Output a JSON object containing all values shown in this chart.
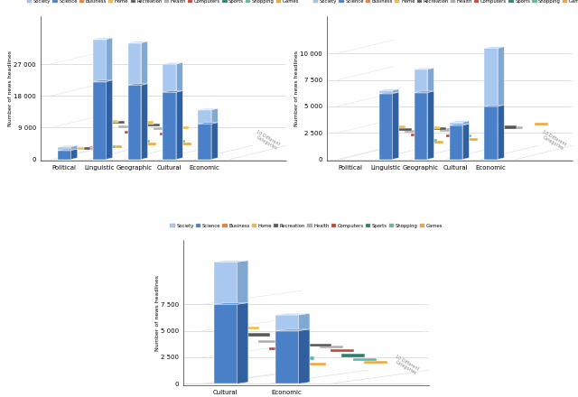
{
  "series_labels": [
    "Society",
    "Science",
    "Business",
    "Home",
    "Recreation",
    "Health",
    "Computers",
    "Sports",
    "Shopping",
    "Games"
  ],
  "series_colors": [
    "#a8c8f0",
    "#4a80c8",
    "#e8803a",
    "#f0c040",
    "#585858",
    "#b0b0b0",
    "#d04030",
    "#2a8070",
    "#60b8a8",
    "#f0a838"
  ],
  "series_colors_dark": [
    "#80a8d0",
    "#3060a0",
    "#c06020",
    "#c09820",
    "#303030",
    "#888888",
    "#a02020",
    "#1a6050",
    "#409080",
    "#c07820"
  ],
  "series_colors_top": [
    "#c8e0f8",
    "#6898d8",
    "#f0a060",
    "#f8d860",
    "#707070",
    "#d0d0d0",
    "#e06050",
    "#3a9888",
    "#80d0c0",
    "#f8c060"
  ],
  "chart1": {
    "categories": [
      "Political",
      "Linguistic",
      "Geographic",
      "Cultural",
      "Economic"
    ],
    "ylabel": "Number of news headlines",
    "ylim": [
      0,
      36000
    ],
    "yticks": [
      0,
      9000,
      18000,
      27000
    ],
    "ytick_labels": [
      "0",
      "9 000",
      "18 000",
      "27 000"
    ],
    "tall_data": [
      [
        3500,
        34000,
        33000,
        27000,
        14000
      ],
      [
        2500,
        22000,
        21000,
        19000,
        10000
      ]
    ],
    "slab_data": [
      [
        2800,
        17000,
        16000,
        13000,
        9000
      ],
      [
        2200,
        10000,
        9500,
        8000,
        0
      ],
      [
        1800,
        9200,
        8500,
        0,
        0
      ],
      [
        1400,
        7500,
        7000,
        0,
        0
      ],
      [
        1100,
        5500,
        5000,
        0,
        0
      ],
      [
        800,
        4200,
        3800,
        0,
        0
      ],
      [
        500,
        2200,
        2000,
        0,
        0
      ],
      [
        250,
        900,
        800,
        0,
        0
      ]
    ]
  },
  "chart2": {
    "categories": [
      "Political",
      "Linguistic",
      "Geographic",
      "Cultural",
      "Economic"
    ],
    "ylabel": "Number of news headlines",
    "ylim": [
      0,
      12000
    ],
    "yticks": [
      0,
      2500,
      5000,
      7500,
      10000
    ],
    "ytick_labels": [
      "0",
      "2 500",
      "5 000",
      "7 500",
      "10 000"
    ],
    "tall_data": [
      [
        0,
        6500,
        8500,
        3500,
        10500
      ],
      [
        0,
        6200,
        6300,
        3200,
        5000
      ]
    ],
    "slab_data": [
      [
        0,
        4500,
        4700,
        0,
        2800
      ],
      [
        0,
        2800,
        2700,
        0,
        0
      ],
      [
        0,
        2400,
        2500,
        0,
        2600
      ],
      [
        0,
        2100,
        2200,
        0,
        2400
      ],
      [
        0,
        1600,
        1500,
        0,
        0
      ],
      [
        0,
        1200,
        1800,
        1800,
        0
      ],
      [
        0,
        800,
        1200,
        0,
        0
      ],
      [
        0,
        500,
        700,
        0,
        2200
      ]
    ]
  },
  "chart3": {
    "categories": [
      "Cultural",
      "Economic"
    ],
    "ylabel": "Number of news headlines",
    "ylim": [
      0,
      12000
    ],
    "yticks": [
      0,
      2500,
      5000,
      7500
    ],
    "ytick_labels": [
      "0",
      "2 500",
      "5 000",
      "7 500"
    ],
    "tall_data": [
      [
        11500,
        6500
      ],
      [
        7500,
        5000
      ]
    ],
    "slab_data": [
      [
        6200,
        4800
      ],
      [
        5000,
        0
      ],
      [
        4200,
        3200
      ],
      [
        3400,
        2900
      ],
      [
        2600,
        2400
      ],
      [
        2000,
        1800
      ],
      [
        1400,
        1300
      ],
      [
        700,
        900
      ]
    ]
  },
  "figsize": [
    6.4,
    4.4
  ],
  "dpi": 100
}
